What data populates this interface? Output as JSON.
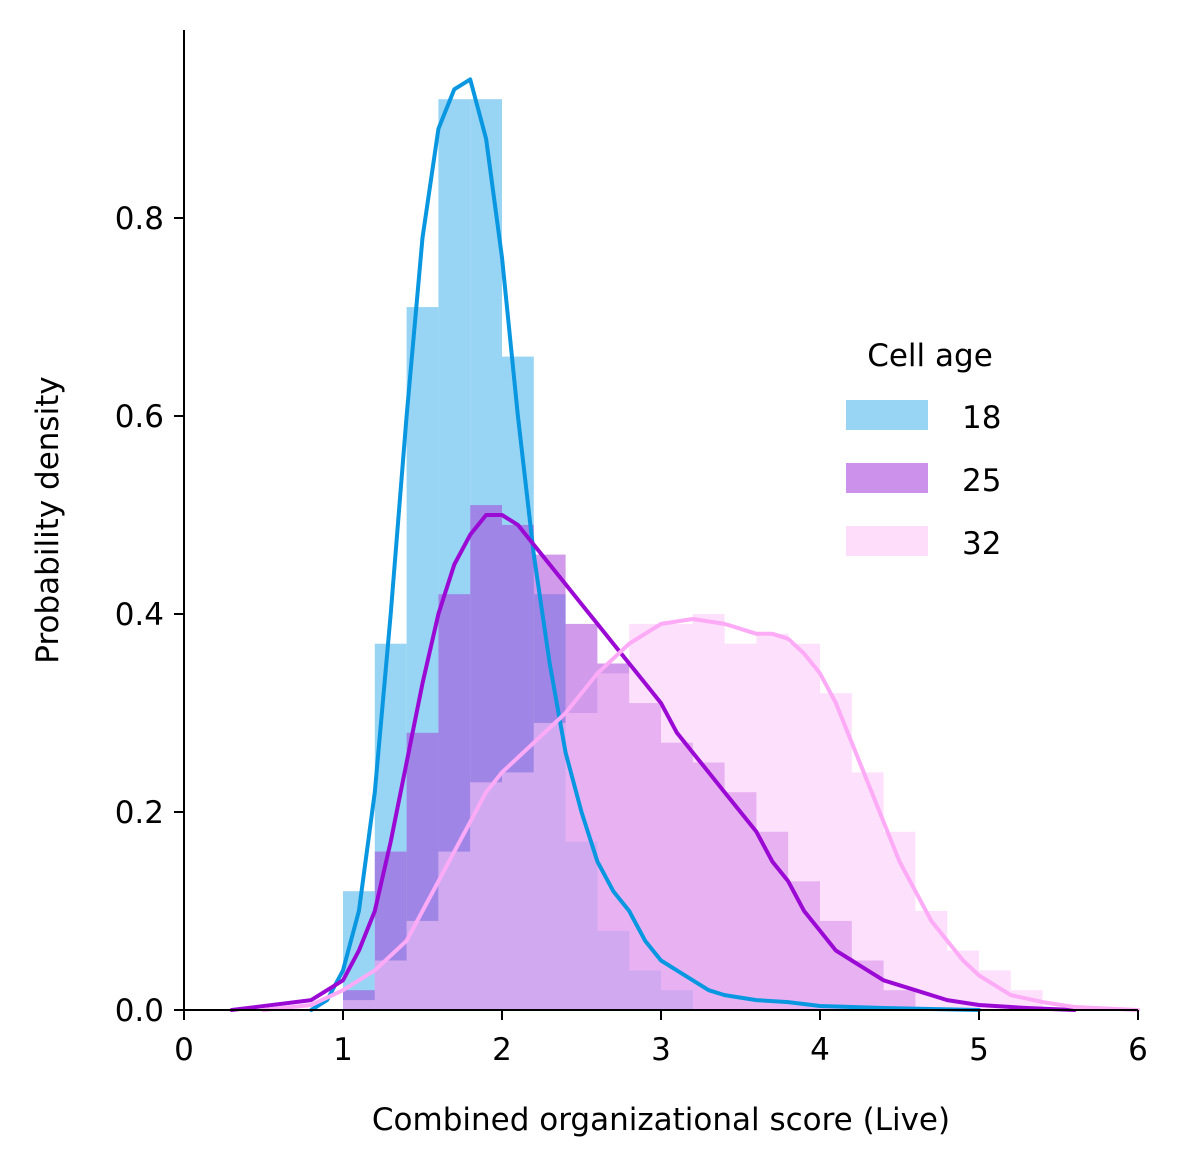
{
  "chart_data": {
    "type": "area",
    "xlabel": "Combined organizational score (Live)",
    "ylabel": "Probability density",
    "xlim": [
      0,
      6
    ],
    "ylim": [
      0,
      0.99
    ],
    "xticks": [
      "0",
      "1",
      "2",
      "3",
      "4",
      "5",
      "6"
    ],
    "yticks": [
      "0.0",
      "0.2",
      "0.4",
      "0.6",
      "0.8"
    ],
    "grid": false,
    "legend": {
      "title": "Cell age",
      "placement": "right",
      "entries": [
        "18",
        "25",
        "32"
      ]
    },
    "bin_width": 0.2,
    "series": [
      {
        "name": "18",
        "bar_color": "#98d4f4",
        "line_color": "#0897e0",
        "bar_opacity": 1.0,
        "bins": [
          {
            "x0": 1.0,
            "y": 0.12
          },
          {
            "x0": 1.2,
            "y": 0.37
          },
          {
            "x0": 1.4,
            "y": 0.71
          },
          {
            "x0": 1.6,
            "y": 0.92
          },
          {
            "x0": 1.8,
            "y": 0.92
          },
          {
            "x0": 2.0,
            "y": 0.66
          },
          {
            "x0": 2.2,
            "y": 0.42
          },
          {
            "x0": 2.4,
            "y": 0.17
          },
          {
            "x0": 2.6,
            "y": 0.08
          },
          {
            "x0": 2.8,
            "y": 0.04
          },
          {
            "x0": 3.0,
            "y": 0.02
          }
        ],
        "kde": [
          [
            0.8,
            0.0
          ],
          [
            0.9,
            0.01
          ],
          [
            1.0,
            0.04
          ],
          [
            1.1,
            0.1
          ],
          [
            1.2,
            0.22
          ],
          [
            1.3,
            0.4
          ],
          [
            1.4,
            0.6
          ],
          [
            1.5,
            0.78
          ],
          [
            1.6,
            0.89
          ],
          [
            1.7,
            0.93
          ],
          [
            1.8,
            0.94
          ],
          [
            1.9,
            0.88
          ],
          [
            2.0,
            0.76
          ],
          [
            2.1,
            0.6
          ],
          [
            2.2,
            0.46
          ],
          [
            2.3,
            0.35
          ],
          [
            2.4,
            0.26
          ],
          [
            2.5,
            0.2
          ],
          [
            2.6,
            0.15
          ],
          [
            2.7,
            0.12
          ],
          [
            2.8,
            0.1
          ],
          [
            2.9,
            0.07
          ],
          [
            3.0,
            0.05
          ],
          [
            3.1,
            0.04
          ],
          [
            3.2,
            0.03
          ],
          [
            3.3,
            0.02
          ],
          [
            3.4,
            0.015
          ],
          [
            3.6,
            0.01
          ],
          [
            3.8,
            0.008
          ],
          [
            4.0,
            0.004
          ],
          [
            4.4,
            0.002
          ],
          [
            5.0,
            0.0
          ]
        ]
      },
      {
        "name": "25",
        "bar_color": "#a336d8",
        "line_color": "#9b0ad4",
        "bar_opacity": 0.5,
        "bins": [
          {
            "x0": 1.0,
            "y": 0.02
          },
          {
            "x0": 1.2,
            "y": 0.16
          },
          {
            "x0": 1.4,
            "y": 0.28
          },
          {
            "x0": 1.6,
            "y": 0.42
          },
          {
            "x0": 1.8,
            "y": 0.51
          },
          {
            "x0": 2.0,
            "y": 0.49
          },
          {
            "x0": 2.2,
            "y": 0.46
          },
          {
            "x0": 2.4,
            "y": 0.39
          },
          {
            "x0": 2.6,
            "y": 0.35
          },
          {
            "x0": 2.8,
            "y": 0.31
          },
          {
            "x0": 3.0,
            "y": 0.27
          },
          {
            "x0": 3.2,
            "y": 0.25
          },
          {
            "x0": 3.4,
            "y": 0.22
          },
          {
            "x0": 3.6,
            "y": 0.18
          },
          {
            "x0": 3.8,
            "y": 0.13
          },
          {
            "x0": 4.0,
            "y": 0.09
          },
          {
            "x0": 4.2,
            "y": 0.05
          },
          {
            "x0": 4.4,
            "y": 0.02
          }
        ],
        "kde": [
          [
            0.3,
            0.0
          ],
          [
            0.8,
            0.01
          ],
          [
            1.0,
            0.03
          ],
          [
            1.1,
            0.06
          ],
          [
            1.2,
            0.1
          ],
          [
            1.3,
            0.17
          ],
          [
            1.4,
            0.25
          ],
          [
            1.5,
            0.33
          ],
          [
            1.6,
            0.4
          ],
          [
            1.7,
            0.45
          ],
          [
            1.8,
            0.48
          ],
          [
            1.9,
            0.5
          ],
          [
            2.0,
            0.5
          ],
          [
            2.1,
            0.49
          ],
          [
            2.2,
            0.47
          ],
          [
            2.3,
            0.45
          ],
          [
            2.4,
            0.43
          ],
          [
            2.5,
            0.41
          ],
          [
            2.6,
            0.39
          ],
          [
            2.7,
            0.37
          ],
          [
            2.8,
            0.35
          ],
          [
            2.9,
            0.33
          ],
          [
            3.0,
            0.31
          ],
          [
            3.1,
            0.28
          ],
          [
            3.2,
            0.26
          ],
          [
            3.3,
            0.24
          ],
          [
            3.4,
            0.22
          ],
          [
            3.5,
            0.2
          ],
          [
            3.6,
            0.18
          ],
          [
            3.7,
            0.15
          ],
          [
            3.8,
            0.13
          ],
          [
            3.9,
            0.1
          ],
          [
            4.0,
            0.08
          ],
          [
            4.1,
            0.06
          ],
          [
            4.2,
            0.05
          ],
          [
            4.3,
            0.04
          ],
          [
            4.4,
            0.03
          ],
          [
            4.6,
            0.02
          ],
          [
            4.8,
            0.01
          ],
          [
            5.0,
            0.005
          ],
          [
            5.3,
            0.002
          ],
          [
            5.6,
            0.0
          ]
        ]
      },
      {
        "name": "32",
        "bar_color": "#fcc6f7",
        "line_color": "#fdaaf7",
        "bar_opacity": 0.55,
        "bins": [
          {
            "x0": 1.0,
            "y": 0.01
          },
          {
            "x0": 1.2,
            "y": 0.05
          },
          {
            "x0": 1.4,
            "y": 0.09
          },
          {
            "x0": 1.6,
            "y": 0.16
          },
          {
            "x0": 1.8,
            "y": 0.23
          },
          {
            "x0": 2.0,
            "y": 0.24
          },
          {
            "x0": 2.2,
            "y": 0.29
          },
          {
            "x0": 2.4,
            "y": 0.3
          },
          {
            "x0": 2.6,
            "y": 0.34
          },
          {
            "x0": 2.8,
            "y": 0.39
          },
          {
            "x0": 3.0,
            "y": 0.39
          },
          {
            "x0": 3.2,
            "y": 0.4
          },
          {
            "x0": 3.4,
            "y": 0.37
          },
          {
            "x0": 3.6,
            "y": 0.38
          },
          {
            "x0": 3.8,
            "y": 0.37
          },
          {
            "x0": 4.0,
            "y": 0.32
          },
          {
            "x0": 4.2,
            "y": 0.24
          },
          {
            "x0": 4.4,
            "y": 0.18
          },
          {
            "x0": 4.6,
            "y": 0.1
          },
          {
            "x0": 4.8,
            "y": 0.06
          },
          {
            "x0": 5.0,
            "y": 0.04
          },
          {
            "x0": 5.2,
            "y": 0.02
          }
        ],
        "kde": [
          [
            0.5,
            0.0
          ],
          [
            0.8,
            0.005
          ],
          [
            1.0,
            0.02
          ],
          [
            1.2,
            0.04
          ],
          [
            1.4,
            0.07
          ],
          [
            1.5,
            0.1
          ],
          [
            1.6,
            0.13
          ],
          [
            1.7,
            0.16
          ],
          [
            1.8,
            0.19
          ],
          [
            1.9,
            0.22
          ],
          [
            2.0,
            0.24
          ],
          [
            2.2,
            0.27
          ],
          [
            2.4,
            0.3
          ],
          [
            2.6,
            0.34
          ],
          [
            2.8,
            0.37
          ],
          [
            3.0,
            0.39
          ],
          [
            3.2,
            0.395
          ],
          [
            3.4,
            0.39
          ],
          [
            3.5,
            0.385
          ],
          [
            3.6,
            0.38
          ],
          [
            3.7,
            0.38
          ],
          [
            3.8,
            0.375
          ],
          [
            3.9,
            0.36
          ],
          [
            4.0,
            0.34
          ],
          [
            4.1,
            0.31
          ],
          [
            4.2,
            0.27
          ],
          [
            4.3,
            0.23
          ],
          [
            4.4,
            0.19
          ],
          [
            4.5,
            0.15
          ],
          [
            4.6,
            0.12
          ],
          [
            4.7,
            0.09
          ],
          [
            4.8,
            0.07
          ],
          [
            4.9,
            0.05
          ],
          [
            5.0,
            0.035
          ],
          [
            5.1,
            0.025
          ],
          [
            5.2,
            0.015
          ],
          [
            5.4,
            0.008
          ],
          [
            5.6,
            0.003
          ],
          [
            6.0,
            0.0
          ]
        ]
      }
    ]
  }
}
